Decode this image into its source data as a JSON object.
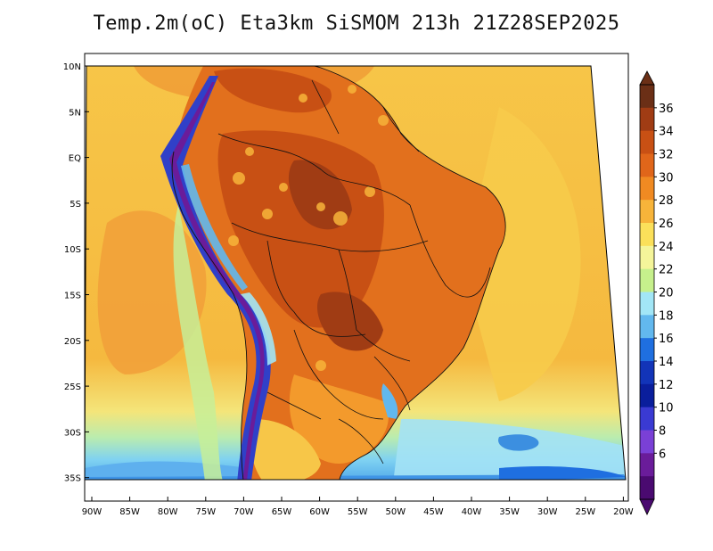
{
  "map": {
    "title": "Temp.2m(oC) Eta3km SiSMOM 213h 21Z28SEP2025",
    "lat_labels": [
      "10N",
      "5N",
      "EQ",
      "5S",
      "10S",
      "15S",
      "20S",
      "25S",
      "30S",
      "35S"
    ],
    "lon_labels": [
      "90W",
      "85W",
      "80W",
      "75W",
      "70W",
      "65W",
      "60W",
      "55W",
      "50W",
      "45W",
      "40W",
      "35W",
      "30W",
      "25W",
      "20W"
    ],
    "colorbar": {
      "labels": [
        "36",
        "34",
        "32",
        "30",
        "28",
        "26",
        "24",
        "22",
        "20",
        "18",
        "16",
        "14",
        "12",
        "10",
        "8",
        "6"
      ],
      "colors": [
        "#6b2f16",
        "#a03c14",
        "#c85014",
        "#e0661a",
        "#f08a22",
        "#f7b43a",
        "#fbe05a",
        "#f5f59a",
        "#c6f08c",
        "#a2e6f6",
        "#62b8ee",
        "#1f6fe0",
        "#1234b8",
        "#0a1e9c",
        "#3a3ad2",
        "#7a40d6",
        "#6a1c9a",
        "#4a0a70"
      ]
    }
  }
}
